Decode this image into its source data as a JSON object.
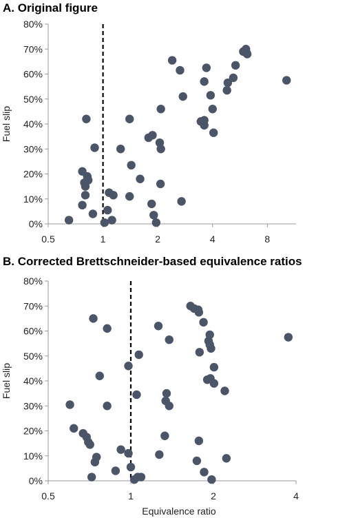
{
  "chart_data": [
    {
      "type": "scatter",
      "panel_title": "A. Original figure",
      "xlabel": "",
      "ylabel": "Fuel slip",
      "xscale": "log2",
      "xlim": [
        0.5,
        11.5
      ],
      "ylim": [
        0,
        0.8
      ],
      "x_ticks": [
        "0.5",
        "1",
        "2",
        "4",
        "8"
      ],
      "x_tick_values": [
        0.5,
        1,
        2,
        4,
        8
      ],
      "y_ticks": [
        "0%",
        "10%",
        "20%",
        "30%",
        "40%",
        "50%",
        "60%",
        "70%",
        "80%"
      ],
      "y_tick_values": [
        0,
        0.1,
        0.2,
        0.3,
        0.4,
        0.5,
        0.6,
        0.7,
        0.8
      ],
      "reference_line_x": 1,
      "marker_color": "#4a5568",
      "points": [
        {
          "x": 0.65,
          "y": 0.015
        },
        {
          "x": 0.77,
          "y": 0.075
        },
        {
          "x": 0.77,
          "y": 0.21
        },
        {
          "x": 0.79,
          "y": 0.165
        },
        {
          "x": 0.8,
          "y": 0.15
        },
        {
          "x": 0.8,
          "y": 0.115
        },
        {
          "x": 0.82,
          "y": 0.19
        },
        {
          "x": 0.83,
          "y": 0.175
        },
        {
          "x": 0.81,
          "y": 0.42
        },
        {
          "x": 0.88,
          "y": 0.04
        },
        {
          "x": 0.9,
          "y": 0.305
        },
        {
          "x": 1.02,
          "y": 0.005
        },
        {
          "x": 1.06,
          "y": 0.055
        },
        {
          "x": 1.08,
          "y": 0.125
        },
        {
          "x": 1.12,
          "y": 0.015
        },
        {
          "x": 1.14,
          "y": 0.115
        },
        {
          "x": 1.25,
          "y": 0.3
        },
        {
          "x": 1.4,
          "y": 0.42
        },
        {
          "x": 1.4,
          "y": 0.11
        },
        {
          "x": 1.43,
          "y": 0.235
        },
        {
          "x": 1.6,
          "y": 0.18
        },
        {
          "x": 1.78,
          "y": 0.345
        },
        {
          "x": 1.85,
          "y": 0.08
        },
        {
          "x": 1.87,
          "y": 0.355
        },
        {
          "x": 1.9,
          "y": 0.035
        },
        {
          "x": 1.96,
          "y": 0.005
        },
        {
          "x": 2.05,
          "y": 0.325
        },
        {
          "x": 2.08,
          "y": 0.3
        },
        {
          "x": 2.07,
          "y": 0.16
        },
        {
          "x": 2.08,
          "y": 0.46
        },
        {
          "x": 2.4,
          "y": 0.655
        },
        {
          "x": 2.65,
          "y": 0.615
        },
        {
          "x": 2.7,
          "y": 0.09
        },
        {
          "x": 2.75,
          "y": 0.51
        },
        {
          "x": 3.45,
          "y": 0.41
        },
        {
          "x": 3.6,
          "y": 0.395
        },
        {
          "x": 3.6,
          "y": 0.415
        },
        {
          "x": 3.6,
          "y": 0.57
        },
        {
          "x": 3.7,
          "y": 0.625
        },
        {
          "x": 3.9,
          "y": 0.515
        },
        {
          "x": 4.05,
          "y": 0.365
        },
        {
          "x": 4.0,
          "y": 0.46
        },
        {
          "x": 4.8,
          "y": 0.535
        },
        {
          "x": 4.85,
          "y": 0.565
        },
        {
          "x": 5.2,
          "y": 0.585
        },
        {
          "x": 5.35,
          "y": 0.635
        },
        {
          "x": 5.9,
          "y": 0.69
        },
        {
          "x": 6.1,
          "y": 0.7
        },
        {
          "x": 6.15,
          "y": 0.685
        },
        {
          "x": 6.2,
          "y": 0.68
        },
        {
          "x": 10.2,
          "y": 0.575
        }
      ]
    },
    {
      "type": "scatter",
      "panel_title": "B. Corrected Brettschneider-based equivalence ratios",
      "xlabel": "Equivalence ratio",
      "ylabel": "Fuel slip",
      "xscale": "log2",
      "xlim": [
        0.5,
        4
      ],
      "ylim": [
        0,
        0.8
      ],
      "x_ticks": [
        "0.5",
        "1",
        "2",
        "4"
      ],
      "x_tick_values": [
        0.5,
        1,
        2,
        4
      ],
      "y_ticks": [
        "0%",
        "10%",
        "20%",
        "30%",
        "40%",
        "50%",
        "60%",
        "70%",
        "80%"
      ],
      "y_tick_values": [
        0,
        0.1,
        0.2,
        0.3,
        0.4,
        0.5,
        0.6,
        0.7,
        0.8
      ],
      "reference_line_x": 1,
      "marker_color": "#4a5568",
      "points": [
        {
          "x": 0.6,
          "y": 0.305
        },
        {
          "x": 0.62,
          "y": 0.21
        },
        {
          "x": 0.67,
          "y": 0.19
        },
        {
          "x": 0.69,
          "y": 0.175
        },
        {
          "x": 0.7,
          "y": 0.155
        },
        {
          "x": 0.71,
          "y": 0.145
        },
        {
          "x": 0.72,
          "y": 0.015
        },
        {
          "x": 0.74,
          "y": 0.075
        },
        {
          "x": 0.75,
          "y": 0.095
        },
        {
          "x": 0.73,
          "y": 0.65
        },
        {
          "x": 0.77,
          "y": 0.42
        },
        {
          "x": 0.82,
          "y": 0.61
        },
        {
          "x": 0.82,
          "y": 0.3
        },
        {
          "x": 0.88,
          "y": 0.04
        },
        {
          "x": 0.92,
          "y": 0.125
        },
        {
          "x": 0.98,
          "y": 0.46
        },
        {
          "x": 0.98,
          "y": 0.11
        },
        {
          "x": 1.0,
          "y": 0.055
        },
        {
          "x": 1.03,
          "y": 0.005
        },
        {
          "x": 1.05,
          "y": 0.345
        },
        {
          "x": 1.06,
          "y": 0.015
        },
        {
          "x": 1.07,
          "y": 0.505
        },
        {
          "x": 1.09,
          "y": 0.015
        },
        {
          "x": 1.26,
          "y": 0.62
        },
        {
          "x": 1.27,
          "y": 0.105
        },
        {
          "x": 1.33,
          "y": 0.18
        },
        {
          "x": 1.34,
          "y": 0.32
        },
        {
          "x": 1.35,
          "y": 0.35
        },
        {
          "x": 1.38,
          "y": 0.565
        },
        {
          "x": 1.38,
          "y": 0.3
        },
        {
          "x": 1.65,
          "y": 0.7
        },
        {
          "x": 1.7,
          "y": 0.69
        },
        {
          "x": 1.74,
          "y": 0.08
        },
        {
          "x": 1.76,
          "y": 0.685
        },
        {
          "x": 1.77,
          "y": 0.675
        },
        {
          "x": 1.77,
          "y": 0.16
        },
        {
          "x": 1.78,
          "y": 0.515
        },
        {
          "x": 1.84,
          "y": 0.635
        },
        {
          "x": 1.85,
          "y": 0.035
        },
        {
          "x": 1.9,
          "y": 0.405
        },
        {
          "x": 1.92,
          "y": 0.56
        },
        {
          "x": 1.94,
          "y": 0.585
        },
        {
          "x": 1.94,
          "y": 0.545
        },
        {
          "x": 1.95,
          "y": 0.41
        },
        {
          "x": 1.96,
          "y": 0.53
        },
        {
          "x": 1.97,
          "y": 0.005
        },
        {
          "x": 2.01,
          "y": 0.455
        },
        {
          "x": 2.01,
          "y": 0.39
        },
        {
          "x": 2.2,
          "y": 0.36
        },
        {
          "x": 2.23,
          "y": 0.09
        },
        {
          "x": 3.75,
          "y": 0.575
        }
      ]
    }
  ]
}
